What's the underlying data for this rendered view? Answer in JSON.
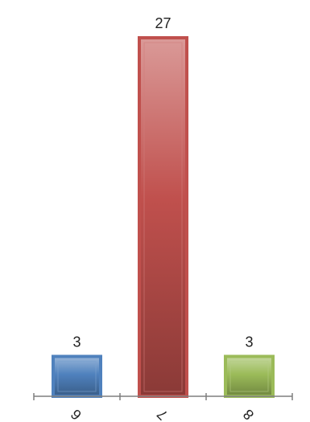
{
  "chart_data": {
    "type": "bar",
    "categories": [
      "6",
      "7",
      "8"
    ],
    "values": [
      3,
      27,
      3
    ],
    "colors": [
      "#4f81bd",
      "#c0504d",
      "#9bbb59"
    ],
    "ylim": [
      0,
      27
    ],
    "grid": false,
    "legend": "none",
    "data_labels": true
  }
}
